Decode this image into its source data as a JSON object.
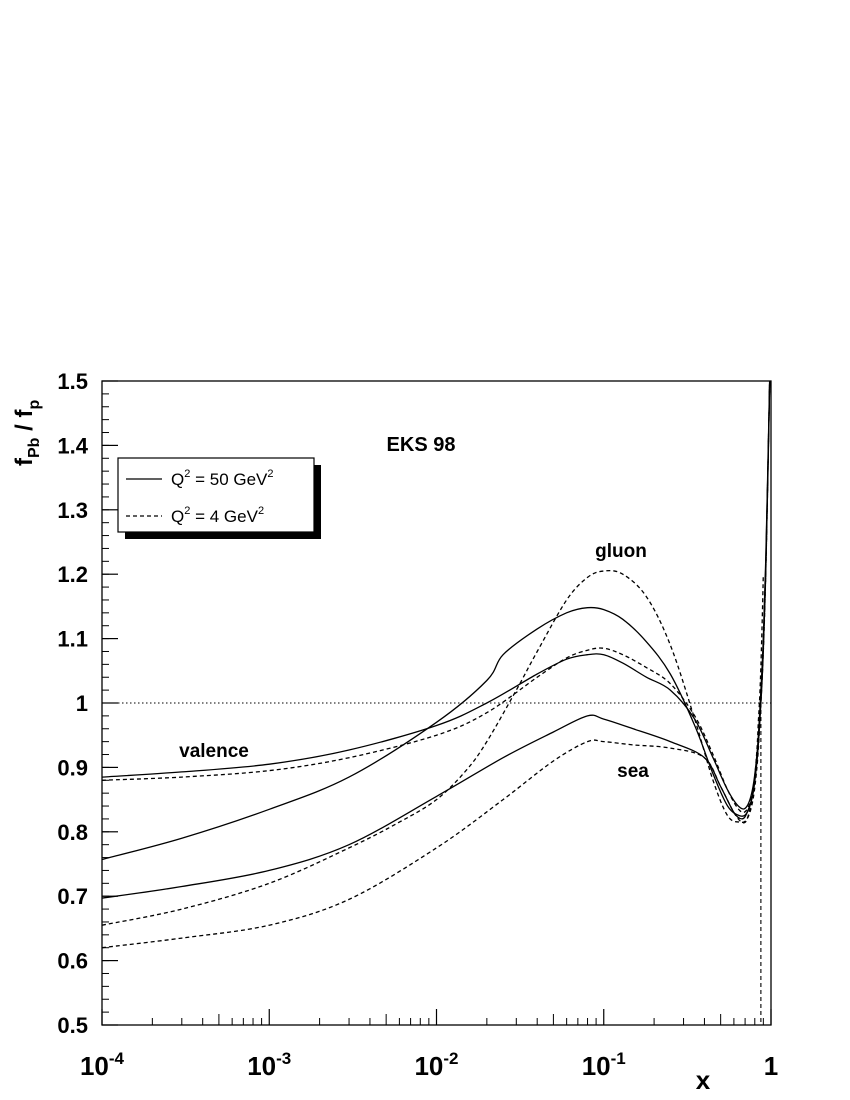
{
  "chart_data": {
    "type": "line",
    "title": "EKS 98",
    "xlabel": "x",
    "ylabel": "f_Pb / f_p",
    "ylabel_parts": {
      "f1": "f",
      "s1": "Pb",
      "mid": " / ",
      "f2": "f",
      "s2": "p"
    },
    "x_scale": "log",
    "xlim": [
      0.0001,
      1
    ],
    "ylim": [
      0.5,
      1.5
    ],
    "x_tick_labels": [
      {
        "base": "10",
        "exp": "-4"
      },
      {
        "base": "10",
        "exp": "-3"
      },
      {
        "base": "10",
        "exp": "-2"
      },
      {
        "base": "10",
        "exp": "-1"
      },
      {
        "base": "1",
        "exp": ""
      }
    ],
    "y_ticks": [
      "0.5",
      "0.6",
      "0.7",
      "0.8",
      "0.9",
      "1",
      "1.1",
      "1.2",
      "1.3",
      "1.4",
      "1.5"
    ],
    "reference_line": 1.0,
    "legend": {
      "placement": "top-left",
      "entries": [
        {
          "prefix": "Q",
          "sup": "2",
          "mid": " = 50 GeV",
          "sup2": "2",
          "style": "solid"
        },
        {
          "prefix": "Q",
          "sup": "2",
          "mid": " = 4 GeV",
          "sup2": "2",
          "style": "dashed"
        }
      ]
    },
    "annotations": [
      "gluon",
      "valence",
      "sea"
    ],
    "series": [
      {
        "label": "valence",
        "Q2": 50,
        "style": "solid",
        "x": [
          0.0001,
          0.0003,
          0.001,
          0.003,
          0.01,
          0.02,
          0.04,
          0.06,
          0.08,
          0.1,
          0.13,
          0.18,
          0.25,
          0.35,
          0.45,
          0.55,
          0.65,
          0.72,
          0.78,
          0.83,
          0.87,
          0.9,
          0.93,
          0.96,
          0.99
        ],
        "y": [
          0.885,
          0.893,
          0.905,
          0.927,
          0.965,
          1.0,
          1.045,
          1.068,
          1.075,
          1.075,
          1.062,
          1.04,
          1.02,
          0.975,
          0.915,
          0.865,
          0.838,
          0.84,
          0.87,
          0.93,
          1.02,
          1.1,
          1.22,
          1.38,
          1.55
        ]
      },
      {
        "label": "valence",
        "Q2": 4,
        "style": "dashed",
        "x": [
          0.0001,
          0.0003,
          0.001,
          0.003,
          0.01,
          0.02,
          0.04,
          0.06,
          0.08,
          0.1,
          0.13,
          0.18,
          0.25,
          0.35,
          0.45,
          0.55,
          0.65,
          0.72,
          0.78,
          0.83,
          0.87,
          0.9,
          0.93,
          0.96,
          0.99
        ],
        "y": [
          0.88,
          0.885,
          0.895,
          0.915,
          0.95,
          0.985,
          1.04,
          1.07,
          1.082,
          1.085,
          1.075,
          1.055,
          1.03,
          0.98,
          0.92,
          0.865,
          0.833,
          0.835,
          0.865,
          0.925,
          1.01,
          1.09,
          1.2,
          1.37,
          1.55
        ]
      },
      {
        "label": "gluon",
        "Q2": 50,
        "style": "solid",
        "x": [
          0.0001,
          0.0003,
          0.001,
          0.003,
          0.01,
          0.02,
          0.025,
          0.04,
          0.06,
          0.08,
          0.1,
          0.13,
          0.18,
          0.25,
          0.35,
          0.45,
          0.55,
          0.65,
          0.72,
          0.78,
          0.83,
          0.87,
          0.9,
          0.93,
          0.96,
          0.99
        ],
        "y": [
          0.757,
          0.79,
          0.835,
          0.885,
          0.97,
          1.035,
          1.075,
          1.115,
          1.14,
          1.148,
          1.145,
          1.13,
          1.095,
          1.045,
          0.965,
          0.89,
          0.84,
          0.825,
          0.83,
          0.86,
          0.92,
          1.01,
          1.09,
          1.21,
          1.37,
          1.55
        ]
      },
      {
        "label": "gluon",
        "Q2": 4,
        "style": "dashed",
        "x": [
          0.0001,
          0.0003,
          0.001,
          0.003,
          0.006,
          0.01,
          0.015,
          0.02,
          0.03,
          0.04,
          0.06,
          0.08,
          0.1,
          0.13,
          0.18,
          0.25,
          0.35,
          0.45,
          0.55,
          0.65,
          0.72,
          0.78,
          0.83,
          0.87,
          0.9,
          0.93,
          0.96,
          0.99
        ],
        "y": [
          0.655,
          0.68,
          0.72,
          0.775,
          0.815,
          0.85,
          0.895,
          0.94,
          1.02,
          1.08,
          1.16,
          1.195,
          1.205,
          1.2,
          1.165,
          1.09,
          0.975,
          0.88,
          0.825,
          0.815,
          0.82,
          0.85,
          0.91,
          1.0,
          1.08,
          1.2,
          1.37,
          1.55
        ]
      },
      {
        "label": "sea",
        "Q2": 50,
        "style": "solid",
        "x": [
          0.0001,
          0.0003,
          0.001,
          0.003,
          0.01,
          0.025,
          0.05,
          0.08,
          0.1,
          0.15,
          0.25,
          0.4,
          0.5,
          0.6,
          0.67,
          0.72,
          0.78,
          0.83,
          0.87,
          0.9,
          0.93,
          0.96,
          0.99
        ],
        "y": [
          0.697,
          0.715,
          0.74,
          0.78,
          0.855,
          0.915,
          0.955,
          0.98,
          0.975,
          0.96,
          0.94,
          0.915,
          0.87,
          0.83,
          0.82,
          0.83,
          0.86,
          0.92,
          1.0,
          1.08,
          1.2,
          1.36,
          1.55
        ]
      },
      {
        "label": "sea",
        "Q2": 4,
        "style": "dashed",
        "x": [
          0.0001,
          0.0003,
          0.001,
          0.003,
          0.01,
          0.025,
          0.05,
          0.08,
          0.1,
          0.15,
          0.25,
          0.4,
          0.5,
          0.6,
          0.67,
          0.72,
          0.78,
          0.82,
          0.84,
          0.86,
          0.88,
          0.9
        ],
        "y": [
          0.62,
          0.635,
          0.655,
          0.695,
          0.775,
          0.85,
          0.91,
          0.94,
          0.94,
          0.935,
          0.93,
          0.915,
          0.87,
          0.83,
          0.815,
          0.82,
          0.86,
          0.92,
          0.97,
          1.02,
          1.1,
          1.2
        ]
      }
    ]
  }
}
